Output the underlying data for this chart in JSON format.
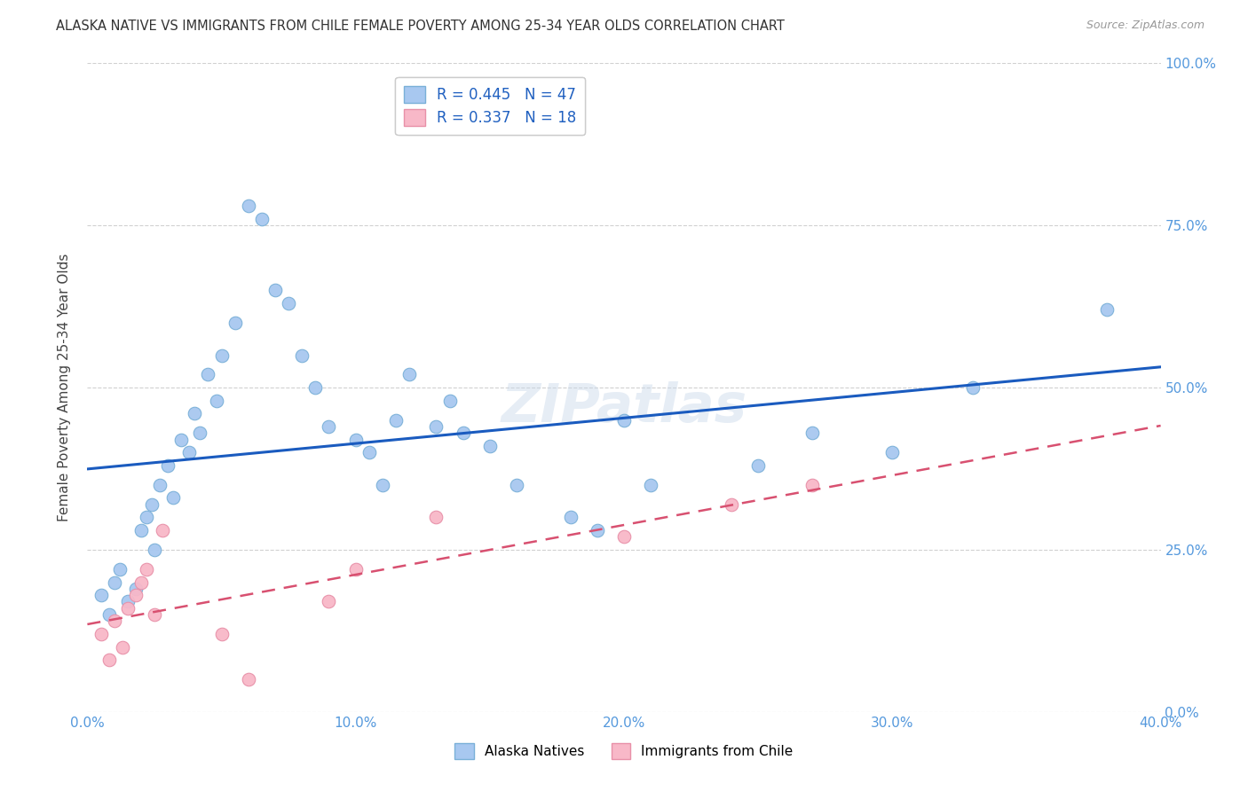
{
  "title": "ALASKA NATIVE VS IMMIGRANTS FROM CHILE FEMALE POVERTY AMONG 25-34 YEAR OLDS CORRELATION CHART",
  "source": "Source: ZipAtlas.com",
  "ylabel": "Female Poverty Among 25-34 Year Olds",
  "xlim": [
    0.0,
    0.4
  ],
  "ylim": [
    0.0,
    1.0
  ],
  "xtick_labels": [
    "0.0%",
    "10.0%",
    "20.0%",
    "30.0%",
    "40.0%"
  ],
  "xtick_vals": [
    0.0,
    0.1,
    0.2,
    0.3,
    0.4
  ],
  "ytick_labels": [
    "0.0%",
    "25.0%",
    "50.0%",
    "75.0%",
    "100.0%"
  ],
  "ytick_vals": [
    0.0,
    0.25,
    0.5,
    0.75,
    1.0
  ],
  "alaska_color": "#a8c8f0",
  "alaska_edge": "#7ab0d8",
  "chile_color": "#f8b8c8",
  "chile_edge": "#e890a8",
  "line_alaska_color": "#1a5bbf",
  "line_chile_color": "#d85070",
  "r_alaska": 0.445,
  "n_alaska": 47,
  "r_chile": 0.337,
  "n_chile": 18,
  "alaska_x": [
    0.005,
    0.008,
    0.01,
    0.012,
    0.015,
    0.018,
    0.02,
    0.022,
    0.024,
    0.025,
    0.027,
    0.03,
    0.032,
    0.035,
    0.038,
    0.04,
    0.042,
    0.045,
    0.048,
    0.05,
    0.055,
    0.06,
    0.065,
    0.07,
    0.075,
    0.08,
    0.085,
    0.09,
    0.1,
    0.105,
    0.11,
    0.115,
    0.12,
    0.13,
    0.135,
    0.14,
    0.15,
    0.16,
    0.18,
    0.19,
    0.2,
    0.21,
    0.25,
    0.27,
    0.3,
    0.33,
    0.38
  ],
  "alaska_y": [
    0.18,
    0.15,
    0.2,
    0.22,
    0.17,
    0.19,
    0.28,
    0.3,
    0.32,
    0.25,
    0.35,
    0.38,
    0.33,
    0.42,
    0.4,
    0.46,
    0.43,
    0.52,
    0.48,
    0.55,
    0.6,
    0.78,
    0.76,
    0.65,
    0.63,
    0.55,
    0.5,
    0.44,
    0.42,
    0.4,
    0.35,
    0.45,
    0.52,
    0.44,
    0.48,
    0.43,
    0.41,
    0.35,
    0.3,
    0.28,
    0.45,
    0.35,
    0.38,
    0.43,
    0.4,
    0.5,
    0.62
  ],
  "chile_x": [
    0.005,
    0.008,
    0.01,
    0.013,
    0.015,
    0.018,
    0.02,
    0.022,
    0.025,
    0.028,
    0.05,
    0.06,
    0.09,
    0.1,
    0.13,
    0.2,
    0.24,
    0.27
  ],
  "chile_y": [
    0.12,
    0.08,
    0.14,
    0.1,
    0.16,
    0.18,
    0.2,
    0.22,
    0.15,
    0.28,
    0.12,
    0.05,
    0.17,
    0.22,
    0.3,
    0.27,
    0.32,
    0.35
  ],
  "watermark": "ZIPatlas",
  "background_color": "#ffffff",
  "grid_color": "#cccccc",
  "tick_color": "#5599dd"
}
